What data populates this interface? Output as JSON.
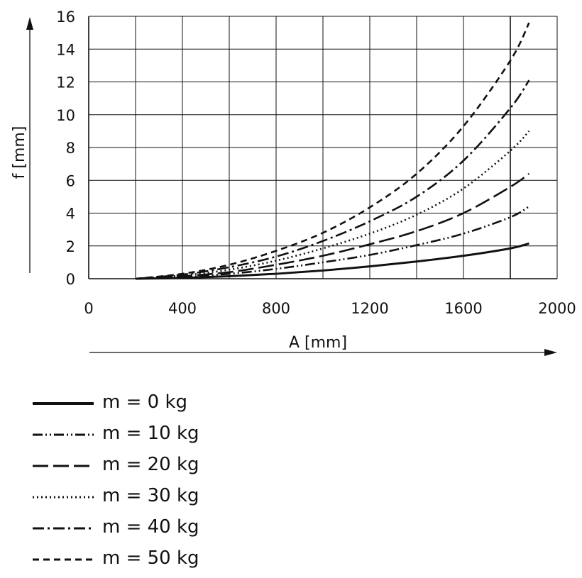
{
  "chart_data": {
    "type": "line",
    "xlabel": "A [mm]",
    "ylabel": "f [mm]",
    "xlim": [
      0,
      2000
    ],
    "ylim": [
      0,
      16
    ],
    "xticks": [
      0,
      400,
      800,
      1200,
      1600,
      2000
    ],
    "yticks": [
      0,
      2,
      4,
      6,
      8,
      10,
      12,
      14,
      16
    ],
    "grid": true,
    "legend_position": "bottom",
    "series": [
      {
        "name": "m = 0 kg",
        "style": "solid",
        "x": [
          200,
          400,
          600,
          800,
          1000,
          1200,
          1400,
          1600,
          1800,
          1880
        ],
        "y": [
          0,
          0.05,
          0.15,
          0.3,
          0.5,
          0.75,
          1.05,
          1.4,
          1.85,
          2.15
        ]
      },
      {
        "name": "m = 10 kg",
        "style": "dash-dot-dot",
        "x": [
          200,
          400,
          600,
          800,
          1000,
          1200,
          1400,
          1600,
          1800,
          1880
        ],
        "y": [
          0,
          0.1,
          0.3,
          0.6,
          1.0,
          1.45,
          2.05,
          2.75,
          3.75,
          4.4
        ]
      },
      {
        "name": "m = 20 kg",
        "style": "long-dash",
        "x": [
          200,
          400,
          600,
          800,
          1000,
          1200,
          1400,
          1600,
          1800,
          1880
        ],
        "y": [
          0,
          0.15,
          0.4,
          0.85,
          1.4,
          2.1,
          2.9,
          4.0,
          5.6,
          6.4
        ]
      },
      {
        "name": "m = 30 kg",
        "style": "dotted",
        "x": [
          200,
          400,
          600,
          800,
          1000,
          1200,
          1400,
          1600,
          1800,
          1880
        ],
        "y": [
          0,
          0.2,
          0.55,
          1.1,
          1.85,
          2.75,
          3.9,
          5.5,
          7.8,
          9.0
        ]
      },
      {
        "name": "m = 40 kg",
        "style": "dash-dot",
        "x": [
          200,
          400,
          600,
          800,
          1000,
          1200,
          1400,
          1600,
          1800,
          1880
        ],
        "y": [
          0,
          0.25,
          0.7,
          1.35,
          2.3,
          3.5,
          5.0,
          7.2,
          10.4,
          12.1
        ]
      },
      {
        "name": "m = 50 kg",
        "style": "short-dash",
        "x": [
          200,
          400,
          600,
          800,
          1000,
          1200,
          1400,
          1600,
          1800,
          1880
        ],
        "y": [
          0,
          0.3,
          0.85,
          1.7,
          2.8,
          4.35,
          6.4,
          9.3,
          13.3,
          15.6
        ]
      }
    ]
  }
}
